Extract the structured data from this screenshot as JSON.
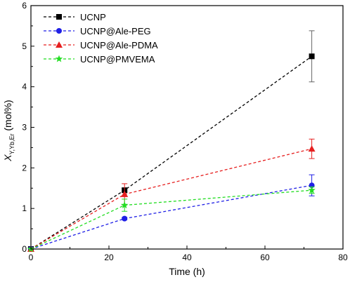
{
  "chart_data": {
    "type": "line",
    "xlabel": "Time (h)",
    "ylabel_main": "X",
    "ylabel_sub": "Y,Yb,Er",
    "ylabel_unit": " (mol%)",
    "xlim": [
      0,
      80
    ],
    "ylim": [
      0,
      6
    ],
    "xticks": [
      "0",
      "20",
      "40",
      "60",
      "80"
    ],
    "yticks": [
      "0",
      "1",
      "2",
      "3",
      "4",
      "5",
      "6"
    ],
    "legend_position": "top-left",
    "grid": false,
    "series": [
      {
        "name": "UCNP",
        "color": "#000000",
        "marker": "square",
        "x": [
          0,
          24,
          72
        ],
        "y": [
          0,
          1.45,
          4.75
        ],
        "err": [
          0,
          0.05,
          0.63
        ]
      },
      {
        "name": "UCNP@Ale-PEG",
        "color": "#1f1fe6",
        "marker": "circle",
        "x": [
          0,
          24,
          72
        ],
        "y": [
          0,
          0.75,
          1.57
        ],
        "err": [
          0,
          0.03,
          0.26
        ]
      },
      {
        "name": "UCNP@Ale-PDMA",
        "color": "#e61f1f",
        "marker": "triangle",
        "x": [
          0,
          24,
          72
        ],
        "y": [
          0,
          1.35,
          2.47
        ],
        "err": [
          0,
          0.26,
          0.24
        ]
      },
      {
        "name": "UCNP@PMVEMA",
        "color": "#22dd22",
        "marker": "star",
        "x": [
          0,
          24,
          72
        ],
        "y": [
          0,
          1.08,
          1.45
        ],
        "err": [
          0,
          0.15,
          0.08
        ]
      }
    ]
  }
}
